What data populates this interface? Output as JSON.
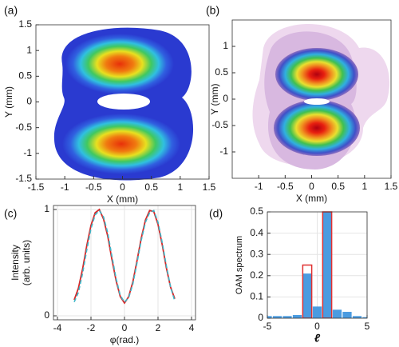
{
  "chart_data": [
    {
      "type": "image",
      "label": "(a)",
      "xlabel": "X (mm)",
      "ylabel": "Y (mm)",
      "xlim": [
        -1.5,
        1.5
      ],
      "ylim": [
        -1.5,
        1.5
      ],
      "xticks": [
        -1.5,
        -1,
        -0.5,
        0,
        0.5,
        1,
        1.5
      ],
      "yticks": [
        -1.5,
        -1,
        -0.5,
        0,
        0.5,
        1,
        1.5
      ]
    },
    {
      "type": "image",
      "label": "(b)",
      "xlabel": "X (mm)",
      "ylabel": "Y (mm)",
      "xlim": [
        -1.5,
        1.5
      ],
      "ylim": [
        -1.5,
        1.5
      ],
      "xticks": [
        -1,
        -0.5,
        0,
        0.5,
        1,
        1.5
      ],
      "yticks": [
        -1,
        -0.5,
        0,
        0.5,
        1
      ]
    },
    {
      "type": "line",
      "label": "(c)",
      "xlabel": "φ(rad.)",
      "ylabel": [
        "Intensity",
        "(arb. units)"
      ],
      "x": [
        -3,
        -2.75,
        -2.5,
        -2.25,
        -2,
        -1.75,
        -1.5,
        -1.25,
        -1,
        -0.75,
        -0.5,
        -0.25,
        0,
        0.25,
        0.5,
        0.75,
        1,
        1.25,
        1.5,
        1.75,
        2,
        2.25,
        2.5,
        2.75,
        3
      ],
      "series": [
        {
          "color": "#d62728",
          "dash": false,
          "values": [
            0.15,
            0.26,
            0.44,
            0.66,
            0.85,
            0.97,
            1.0,
            0.91,
            0.75,
            0.53,
            0.33,
            0.18,
            0.12,
            0.18,
            0.32,
            0.52,
            0.73,
            0.9,
            0.99,
            0.98,
            0.86,
            0.67,
            0.45,
            0.27,
            0.16
          ]
        },
        {
          "color": "#3fb6c8",
          "dash": true,
          "values": [
            0.13,
            0.22,
            0.4,
            0.62,
            0.82,
            0.95,
            0.99,
            0.93,
            0.78,
            0.56,
            0.35,
            0.19,
            0.13,
            0.17,
            0.3,
            0.5,
            0.71,
            0.88,
            0.97,
            0.99,
            0.88,
            0.69,
            0.47,
            0.27,
            0.14
          ]
        }
      ],
      "xlim": [
        -4,
        4
      ],
      "xticks": [
        -4,
        -2,
        0,
        2,
        4
      ],
      "ylim": [
        0,
        1
      ],
      "yticks": [
        0,
        1
      ],
      "grid": true
    },
    {
      "type": "bar",
      "label": "(d)",
      "xlabel": "ℓ",
      "ylabel": "OAM spectrum",
      "x": [
        -5,
        -4,
        -3,
        -2,
        -1,
        0,
        1,
        2,
        3,
        4,
        5
      ],
      "series": [
        {
          "color": "#4a9be0",
          "fill": true,
          "values": [
            0.01,
            0.01,
            0.01,
            0.015,
            0.21,
            0.055,
            0.5,
            0.04,
            0.03,
            0.01,
            0.005
          ]
        },
        {
          "color": "#e03030",
          "fill": false,
          "values": [
            null,
            null,
            null,
            null,
            0.25,
            null,
            0.5,
            null,
            null,
            null,
            null
          ]
        }
      ],
      "xlim": [
        -5,
        5
      ],
      "xticks": [
        -5,
        0,
        5
      ],
      "ylim": [
        0,
        0.5
      ],
      "yticks": [
        0,
        0.1,
        0.2,
        0.3,
        0.4,
        0.5
      ],
      "grid": true
    }
  ]
}
